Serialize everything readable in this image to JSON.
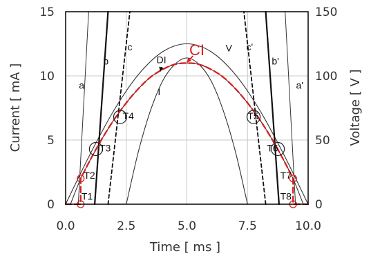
{
  "chart_data": {
    "type": "line",
    "xlabel": "Time [ ms ]",
    "ylabel_left": "Current [ mA ]",
    "ylabel_right": "Voltage [ V ]",
    "xlim": [
      0,
      10
    ],
    "ylim_left": [
      0,
      15
    ],
    "ylim_right": [
      0,
      150
    ],
    "x_ticks": [
      "0.0",
      "2.5",
      "5.0",
      "7.5",
      "10.0"
    ],
    "y_ticks_left": [
      "0",
      "5",
      "10",
      "15"
    ],
    "y_ticks_right": [
      "0",
      "50",
      "100",
      "150"
    ],
    "grid": true,
    "colors": {
      "curve": "#333333",
      "ci": "#d62020",
      "frame": "#000000",
      "grid": "#c8c8c8"
    },
    "series": [
      {
        "name": "V",
        "x": [
          0,
          1,
          2,
          3,
          4,
          5,
          6,
          7,
          8,
          9,
          10
        ],
        "values": [
          0,
          38.6,
          73.4,
          101,
          118.8,
          125,
          118.8,
          101,
          73.4,
          38.6,
          0
        ]
      },
      {
        "name": "I",
        "x": [
          2.5,
          3.0,
          3.5,
          4.0,
          4.5,
          5.0,
          5.5,
          6.0,
          6.5,
          7.0,
          7.5
        ],
        "values": [
          0,
          4.1,
          7.3,
          9.6,
          10.9,
          11.4,
          10.9,
          9.6,
          7.3,
          4.1,
          0
        ]
      },
      {
        "name": "DI",
        "x": [
          0.2,
          0.6,
          1.0,
          1.5,
          2.0,
          2.5,
          3.0,
          3.5,
          4.0,
          4.5,
          5.0,
          5.5,
          6.0,
          6.5,
          7.0,
          7.5,
          8.0,
          8.5,
          9.0,
          9.4,
          9.8
        ],
        "values": [
          0,
          1.9,
          3.4,
          5.1,
          6.6,
          7.9,
          9.0,
          9.9,
          10.5,
          10.9,
          11.0,
          10.9,
          10.5,
          9.9,
          9.0,
          7.9,
          6.6,
          5.1,
          3.4,
          1.9,
          0
        ]
      },
      {
        "name": "CI",
        "x": [
          0,
          0.62,
          0.62,
          1.0,
          1.5,
          2.0,
          2.5,
          3.0,
          3.5,
          4.0,
          4.5,
          5.0,
          5.5,
          6.0,
          6.5,
          7.0,
          7.5,
          8.0,
          8.5,
          9.0,
          9.38,
          9.38,
          10
        ],
        "values": [
          0,
          0,
          2.0,
          3.4,
          5.1,
          6.6,
          7.9,
          9.0,
          9.9,
          10.5,
          10.9,
          11.0,
          10.9,
          10.5,
          9.9,
          9.0,
          7.9,
          6.6,
          5.1,
          3.4,
          2.0,
          0,
          0
        ]
      },
      {
        "name": "a",
        "x": [
          0.52,
          0.95
        ],
        "values": [
          0,
          15
        ]
      },
      {
        "name": "b",
        "x": [
          1.2,
          1.75
        ],
        "values": [
          0,
          15
        ]
      },
      {
        "name": "c",
        "x": [
          1.75,
          2.65
        ],
        "values": [
          0,
          15
        ]
      },
      {
        "name": "a'",
        "x": [
          9.48,
          9.05
        ],
        "values": [
          0,
          15
        ]
      },
      {
        "name": "b'",
        "x": [
          8.8,
          8.25
        ],
        "values": [
          0,
          15
        ]
      },
      {
        "name": "c'",
        "x": [
          8.25,
          7.35
        ],
        "values": [
          0,
          15
        ]
      }
    ],
    "annotations": [
      {
        "text": "CI",
        "x": 5.1,
        "y": 11.6
      },
      {
        "text": "DI",
        "x": 3.75,
        "y": 11.0
      },
      {
        "text": "V",
        "x": 6.6,
        "y": 11.9
      },
      {
        "text": "I",
        "x": 3.8,
        "y": 8.5
      },
      {
        "text": "a",
        "x": 0.55,
        "y": 9.0
      },
      {
        "text": "b",
        "x": 1.55,
        "y": 10.9
      },
      {
        "text": "c",
        "x": 2.55,
        "y": 12.0
      },
      {
        "text": "a'",
        "x": 9.5,
        "y": 9.0
      },
      {
        "text": "b'",
        "x": 8.5,
        "y": 10.9
      },
      {
        "text": "c'",
        "x": 7.45,
        "y": 12.0
      },
      {
        "text": "T1",
        "x": 0.65,
        "y": 0.35
      },
      {
        "text": "T2",
        "x": 0.75,
        "y": 2.0
      },
      {
        "text": "T3",
        "x": 1.4,
        "y": 4.1
      },
      {
        "text": "T4",
        "x": 2.35,
        "y": 6.6
      },
      {
        "text": "T5",
        "x": 7.5,
        "y": 6.6
      },
      {
        "text": "T6",
        "x": 8.3,
        "y": 4.1
      },
      {
        "text": "T7",
        "x": 8.85,
        "y": 2.0
      },
      {
        "text": "T8",
        "x": 8.85,
        "y": 0.35
      }
    ],
    "markers": [
      {
        "x": 0.62,
        "y": 0,
        "size": "small"
      },
      {
        "x": 0.62,
        "y": 2.0,
        "size": "small"
      },
      {
        "x": 1.25,
        "y": 4.3,
        "size": "large"
      },
      {
        "x": 2.25,
        "y": 6.8,
        "size": "large"
      },
      {
        "x": 7.75,
        "y": 6.8,
        "size": "large"
      },
      {
        "x": 8.75,
        "y": 4.3,
        "size": "large"
      },
      {
        "x": 9.38,
        "y": 2.0,
        "size": "small"
      },
      {
        "x": 9.38,
        "y": 0,
        "size": "small"
      }
    ]
  }
}
